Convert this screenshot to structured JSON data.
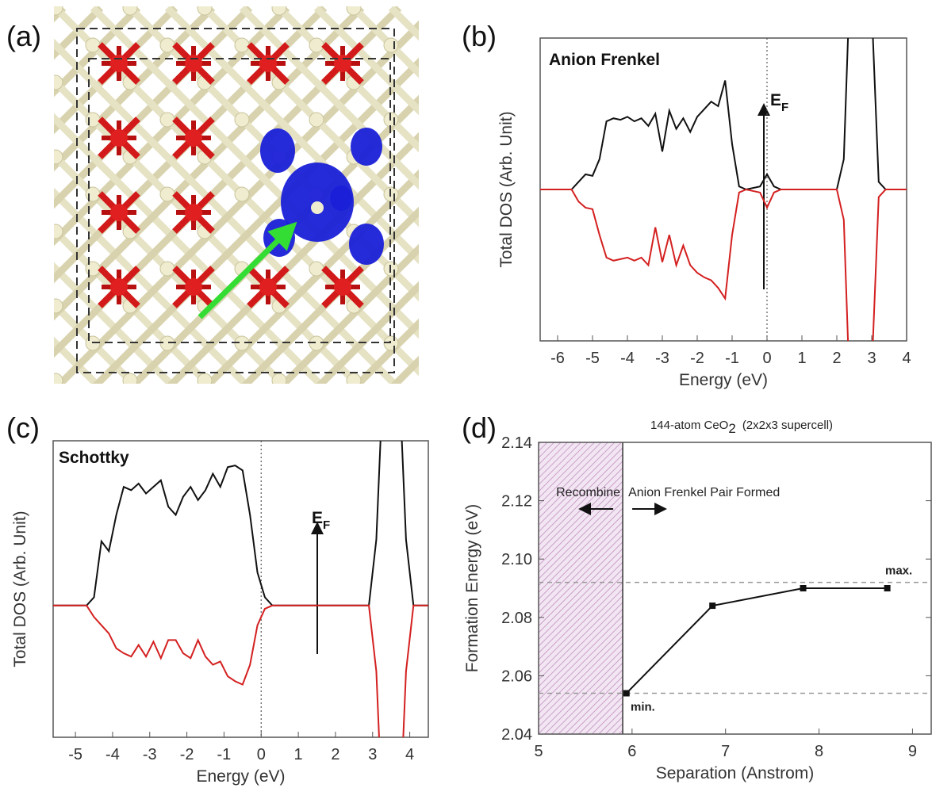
{
  "panel_labels": [
    "(a)",
    "(b)",
    "(c)",
    "(d)"
  ],
  "chart_data": [
    {
      "type": "line",
      "label": "Anion Frenkel",
      "fermi_label": "E",
      "fermi_sub": "F",
      "xlabel": "Energy (eV)",
      "ylabel": "Total DOS (Arb. Unit)",
      "xlim": [
        -6.5,
        4
      ],
      "ylim": [
        -1,
        1
      ],
      "xticks": [
        -6,
        -5,
        -4,
        -3,
        -2,
        -1,
        0,
        1,
        2,
        3,
        4
      ],
      "x": [
        -6.5,
        -5.6,
        -5.4,
        -5.2,
        -5.0,
        -4.8,
        -4.6,
        -4.4,
        -4.2,
        -4.0,
        -3.8,
        -3.6,
        -3.4,
        -3.2,
        -3.0,
        -2.8,
        -2.6,
        -2.4,
        -2.2,
        -2.0,
        -1.8,
        -1.6,
        -1.4,
        -1.2,
        -1.0,
        -0.8,
        -0.6,
        -0.2,
        0,
        0.2,
        0.4,
        2.0,
        2.2,
        2.35,
        3.0,
        3.2,
        3.4,
        4.0
      ],
      "series": [
        {
          "color": "#111111",
          "values": [
            0,
            0,
            0.05,
            0.1,
            0.09,
            0.2,
            0.45,
            0.47,
            0.46,
            0.48,
            0.45,
            0.47,
            0.42,
            0.5,
            0.25,
            0.52,
            0.4,
            0.47,
            0.38,
            0.48,
            0.53,
            0.58,
            0.55,
            0.72,
            0.3,
            0.02,
            0,
            0.02,
            0.1,
            0.02,
            0,
            0,
            0.2,
            1.2,
            1.2,
            0.05,
            0,
            0
          ]
        },
        {
          "color": "#d42020",
          "values": [
            0,
            0,
            -0.08,
            -0.12,
            -0.13,
            -0.3,
            -0.45,
            -0.47,
            -0.46,
            -0.45,
            -0.47,
            -0.45,
            -0.5,
            -0.25,
            -0.48,
            -0.3,
            -0.5,
            -0.37,
            -0.5,
            -0.55,
            -0.58,
            -0.6,
            -0.65,
            -0.72,
            -0.3,
            -0.02,
            0,
            -0.02,
            -0.12,
            -0.02,
            0,
            0,
            -0.2,
            -1.2,
            -1.2,
            -0.05,
            0,
            0
          ]
        }
      ]
    },
    {
      "type": "line",
      "label": "Schottky",
      "fermi_label": "E",
      "fermi_sub": "F",
      "xlabel": "Energy (eV)",
      "ylabel": "Total DOS (Arb. Unit)",
      "xlim": [
        -5.6,
        4.5
      ],
      "ylim": [
        -0.8,
        1.0
      ],
      "xticks": [
        -5,
        -4,
        -3,
        -2,
        -1,
        0,
        1,
        2,
        3,
        4
      ],
      "x": [
        -5.6,
        -4.7,
        -4.5,
        -4.3,
        -4.1,
        -3.9,
        -3.7,
        -3.5,
        -3.3,
        -3.1,
        -2.9,
        -2.7,
        -2.5,
        -2.3,
        -2.1,
        -1.9,
        -1.7,
        -1.5,
        -1.3,
        -1.1,
        -0.9,
        -0.7,
        -0.5,
        -0.3,
        -0.1,
        0.1,
        0.3,
        2.9,
        3.1,
        3.25,
        3.75,
        3.9,
        4.1,
        4.5
      ],
      "series": [
        {
          "color": "#111111",
          "values": [
            0,
            0,
            0.05,
            0.39,
            0.33,
            0.55,
            0.72,
            0.7,
            0.74,
            0.68,
            0.72,
            0.76,
            0.6,
            0.55,
            0.66,
            0.72,
            0.64,
            0.7,
            0.8,
            0.72,
            0.84,
            0.85,
            0.82,
            0.55,
            0.2,
            0.05,
            0,
            0,
            0.4,
            1.2,
            1.2,
            0.4,
            0,
            0
          ]
        },
        {
          "color": "#d42020",
          "values": [
            0,
            0,
            -0.07,
            -0.12,
            -0.17,
            -0.26,
            -0.29,
            -0.31,
            -0.24,
            -0.31,
            -0.22,
            -0.32,
            -0.21,
            -0.21,
            -0.29,
            -0.32,
            -0.21,
            -0.31,
            -0.36,
            -0.34,
            -0.43,
            -0.46,
            -0.48,
            -0.36,
            -0.12,
            -0.02,
            0,
            0,
            -0.4,
            -1.2,
            -1.2,
            -0.4,
            0,
            0
          ]
        }
      ]
    },
    {
      "type": "line",
      "marker": "square",
      "title": "144-atom CeO",
      "title_sub": "2",
      "title_rest": "(2x2x3 supercell)",
      "xlabel": "Separation (Anstrom)",
      "ylabel": "Formation Energy (eV)",
      "xlim": [
        5,
        9.2
      ],
      "ylim": [
        2.04,
        2.14
      ],
      "xticks": [
        5,
        6,
        7,
        8,
        9
      ],
      "yticks": [
        2.04,
        2.06,
        2.08,
        {
          "value": 2.1,
          "label": "2.10"
        },
        2.12,
        2.14
      ],
      "shaded_xrange": [
        5,
        5.9
      ],
      "region_labels": [
        "Recombine",
        "Anion Frenkel Pair Formed"
      ],
      "reference_lines": [
        {
          "value": 2.054,
          "label": "min."
        },
        {
          "value": 2.092,
          "label": "max."
        }
      ],
      "x": [
        5.94,
        6.86,
        7.83,
        8.73
      ],
      "series": [
        {
          "color": "#111111",
          "values": [
            2.054,
            2.084,
            2.09,
            2.09
          ]
        }
      ]
    }
  ]
}
